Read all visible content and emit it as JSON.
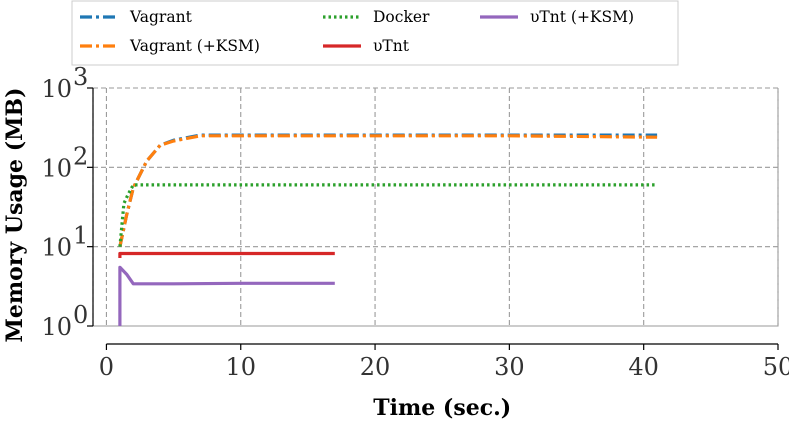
{
  "chart_data": {
    "type": "line",
    "title": "",
    "xlabel": "Time (sec.)",
    "ylabel": "Memory Usage (MB)",
    "xlim": [
      -1,
      50
    ],
    "ylim_log10": [
      0,
      3
    ],
    "yscale": "log",
    "grid": true,
    "legend_position": "top",
    "x_ticks": [
      0,
      10,
      20,
      30,
      40,
      50
    ],
    "x_tick_labels": [
      "0",
      "10",
      "20",
      "30",
      "40",
      "50"
    ],
    "y_ticks": [
      1,
      10,
      100,
      1000
    ],
    "y_tick_bases": [
      "10",
      "10",
      "10",
      "10"
    ],
    "y_tick_exponents": [
      "0",
      "1",
      "2",
      "3"
    ],
    "series": [
      {
        "name": "Vagrant",
        "color": "#1f77b4",
        "style": "dashdot",
        "x": [
          1,
          1.5,
          2,
          3,
          4,
          5,
          7,
          10,
          20,
          30,
          41
        ],
        "y": [
          10,
          25,
          55,
          120,
          190,
          220,
          255,
          255,
          255,
          255,
          255
        ]
      },
      {
        "name": "Vagrant (+KSM)",
        "color": "#ff7f0e",
        "style": "dashdot",
        "x": [
          1,
          1.5,
          2,
          3,
          4,
          5,
          7,
          10,
          20,
          30,
          41
        ],
        "y": [
          10,
          25,
          55,
          120,
          190,
          215,
          250,
          250,
          250,
          250,
          240
        ]
      },
      {
        "name": "Docker",
        "color": "#2ca02c",
        "style": "dotted",
        "x": [
          1,
          1.3,
          1.6,
          2,
          3,
          10,
          20,
          30,
          41
        ],
        "y": [
          10,
          35,
          45,
          60,
          60,
          60,
          60,
          60,
          60
        ]
      },
      {
        "name": "υTnt",
        "color": "#d62728",
        "style": "solid",
        "x": [
          1,
          1,
          1.3,
          2,
          10,
          17
        ],
        "y": [
          7.2,
          8.2,
          8.2,
          8.2,
          8.2,
          8.2
        ]
      },
      {
        "name": "υTnt (+KSM)",
        "color": "#9467bd",
        "style": "solid",
        "x": [
          1,
          1,
          1.5,
          2,
          5,
          10,
          17
        ],
        "y": [
          1,
          5.5,
          4.5,
          3.4,
          3.4,
          3.45,
          3.45
        ]
      }
    ]
  }
}
